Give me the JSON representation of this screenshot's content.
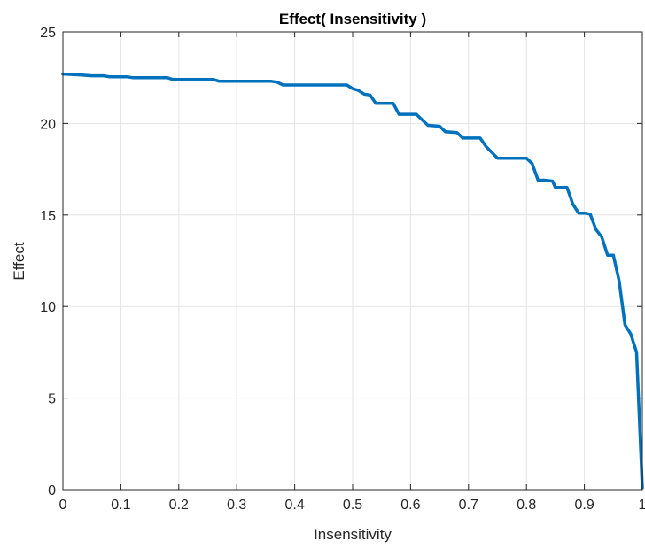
{
  "chart_data": {
    "type": "line",
    "title": "Effect( Insensitivity )",
    "xlabel": "Insensitivity",
    "ylabel": "Effect",
    "xlim": [
      0,
      1
    ],
    "ylim": [
      0,
      25
    ],
    "xticks": [
      0,
      0.1,
      0.2,
      0.3,
      0.4,
      0.5,
      0.6,
      0.7,
      0.8,
      0.9,
      1
    ],
    "xtick_labels": [
      "0",
      "0.1",
      "0.2",
      "0.3",
      "0.4",
      "0.5",
      "0.6",
      "0.7",
      "0.8",
      "0.9",
      "1"
    ],
    "yticks": [
      0,
      5,
      10,
      15,
      20,
      25
    ],
    "ytick_labels": [
      "0",
      "5",
      "10",
      "15",
      "20",
      "25"
    ],
    "grid": true,
    "legend": "none",
    "line_color": "#0072BD",
    "series": [
      {
        "x": [
          0,
          0.03,
          0.05,
          0.07,
          0.08,
          0.11,
          0.12,
          0.18,
          0.19,
          0.26,
          0.27,
          0.36,
          0.37,
          0.38,
          0.39,
          0.49,
          0.5,
          0.51,
          0.52,
          0.53,
          0.54,
          0.57,
          0.58,
          0.61,
          0.63,
          0.65,
          0.66,
          0.68,
          0.69,
          0.72,
          0.73,
          0.75,
          0.76,
          0.8,
          0.81,
          0.82,
          0.83,
          0.845,
          0.85,
          0.87,
          0.88,
          0.89,
          0.9,
          0.91,
          0.92,
          0.93,
          0.94,
          0.95,
          0.96,
          0.97,
          0.98,
          0.99,
          1.0
        ],
        "y": [
          22.7,
          22.65,
          22.6,
          22.6,
          22.55,
          22.55,
          22.5,
          22.5,
          22.4,
          22.4,
          22.3,
          22.3,
          22.25,
          22.1,
          22.1,
          22.1,
          21.9,
          21.8,
          21.6,
          21.55,
          21.1,
          21.1,
          20.5,
          20.5,
          19.9,
          19.85,
          19.55,
          19.5,
          19.2,
          19.2,
          18.75,
          18.1,
          18.1,
          18.1,
          17.8,
          16.9,
          16.9,
          16.85,
          16.5,
          16.5,
          15.6,
          15.1,
          15.1,
          15.05,
          14.2,
          13.8,
          12.8,
          12.8,
          11.4,
          9.0,
          8.5,
          7.5,
          0.1
        ]
      }
    ]
  }
}
